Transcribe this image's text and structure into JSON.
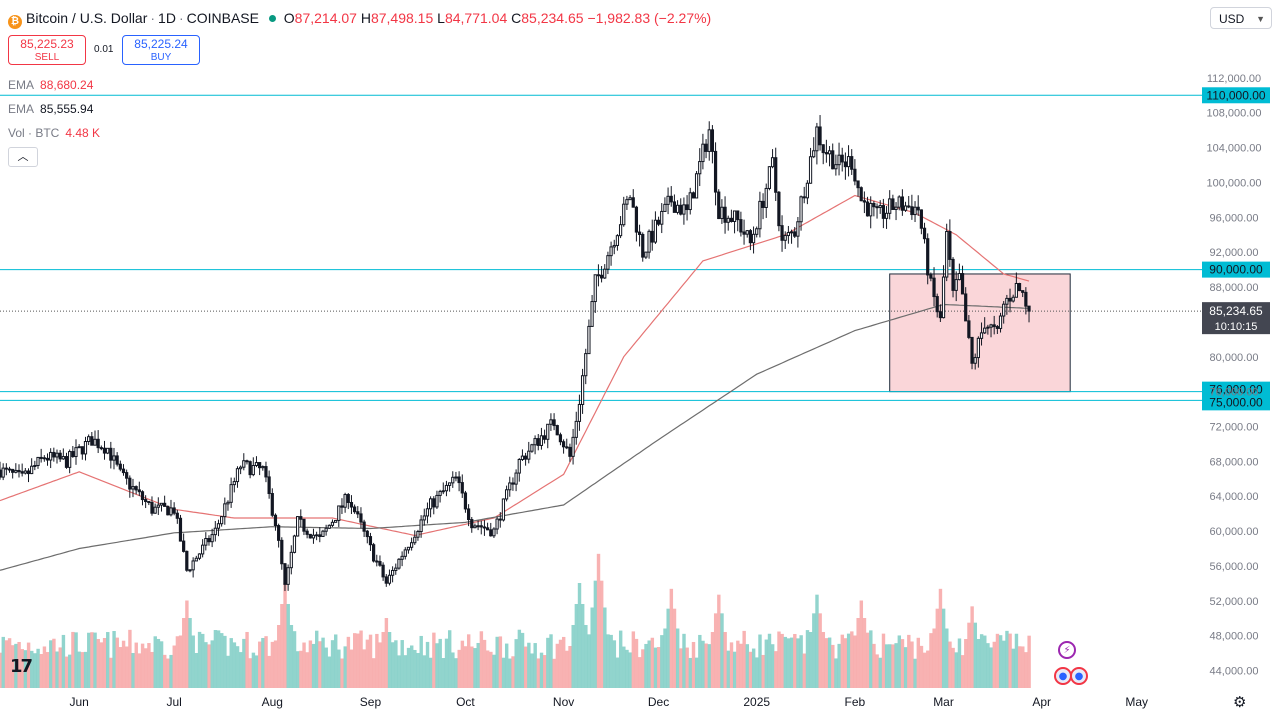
{
  "header": {
    "symbol_name": "Bitcoin / U.S. Dollar",
    "interval": "1D",
    "exchange": "COINBASE",
    "ohlc": {
      "open_label": "O",
      "open": "87,214.07",
      "high_label": "H",
      "high": "87,498.15",
      "low_label": "L",
      "low": "84,771.04",
      "close_label": "C",
      "close": "85,234.65",
      "change": "−1,982.83 (−2.27%)"
    }
  },
  "trade": {
    "sell_price": "85,225.23",
    "sell_label": "SELL",
    "spread": "0.01",
    "buy_price": "85,225.24",
    "buy_label": "BUY"
  },
  "indicators": {
    "ema1_name": "EMA",
    "ema1_value": "88,680.24",
    "ema2_name": "EMA",
    "ema2_value": "85,555.94",
    "vol_name": "Vol · BTC",
    "vol_value": "4.48 K"
  },
  "currency": {
    "selected": "USD"
  },
  "colors": {
    "up": "#089981",
    "down": "#f23645",
    "ema_fast": "#e57373",
    "ema_slow": "#6d6d6d",
    "hline": "#00bcd4",
    "box_fill": "#f8c8cc",
    "box_stroke": "#1e2a3a",
    "vol_up": "#7ecdc4",
    "vol_down": "#f7a5a5"
  },
  "chart_data": {
    "type": "candlestick",
    "y_axis_ticks": [
      "112,000.00",
      "108,000.00",
      "104,000.00",
      "100,000.00",
      "96,000.00",
      "92,000.00",
      "88,000.00",
      "84,000.00",
      "80,000.00",
      "76,000.00",
      "72,000.00",
      "68,000.00",
      "64,000.00",
      "60,000.00",
      "56,000.00",
      "52,000.00",
      "48,000.00",
      "44,000.00"
    ],
    "y_ticks_values": [
      112000,
      108000,
      104000,
      100000,
      96000,
      92000,
      88000,
      84000,
      80000,
      76000,
      72000,
      68000,
      64000,
      60000,
      56000,
      52000,
      48000,
      44000
    ],
    "ylim": [
      42000,
      116800
    ],
    "x_axis_labels": [
      {
        "label": "Jun",
        "date": "2024-06-01"
      },
      {
        "label": "Jul",
        "date": "2024-07-01"
      },
      {
        "label": "Aug",
        "date": "2024-08-01"
      },
      {
        "label": "Sep",
        "date": "2024-09-01"
      },
      {
        "label": "Oct",
        "date": "2024-10-01"
      },
      {
        "label": "Nov",
        "date": "2024-11-01"
      },
      {
        "label": "Dec",
        "date": "2024-12-01"
      },
      {
        "label": "2025",
        "date": "2025-01-01"
      },
      {
        "label": "Feb",
        "date": "2025-02-01"
      },
      {
        "label": "Mar",
        "date": "2025-03-01"
      },
      {
        "label": "Apr",
        "date": "2025-04-01"
      },
      {
        "label": "May",
        "date": "2025-05-01"
      }
    ],
    "xlim": [
      "2024-05-07",
      "2025-05-21"
    ],
    "horizontal_lines": [
      {
        "value": 110000,
        "label": "110,000.00"
      },
      {
        "value": 90000,
        "label": "90,000.00"
      },
      {
        "value": 76000,
        "label": "76,000.00"
      },
      {
        "value": 75000,
        "label": "75,000.00"
      }
    ],
    "current_price": {
      "value": 85234.65,
      "label": "85,234.65",
      "countdown": "10:10:15"
    },
    "zone_box": {
      "start": "2025-02-12",
      "end": "2025-04-10",
      "top": 89500,
      "bottom": 76000
    },
    "price_path": [
      [
        "2024-05-07",
        67000
      ],
      [
        "2024-05-14",
        66000
      ],
      [
        "2024-05-21",
        68500
      ],
      [
        "2024-05-28",
        68000
      ],
      [
        "2024-06-05",
        70500
      ],
      [
        "2024-06-10",
        69500
      ],
      [
        "2024-06-14",
        66500
      ],
      [
        "2024-06-24",
        62500
      ],
      [
        "2024-07-01",
        62500
      ],
      [
        "2024-07-05",
        55500
      ],
      [
        "2024-07-14",
        60000
      ],
      [
        "2024-07-22",
        67500
      ],
      [
        "2024-07-29",
        67000
      ],
      [
        "2024-08-02",
        61000
      ],
      [
        "2024-08-05",
        53500
      ],
      [
        "2024-08-09",
        61000
      ],
      [
        "2024-08-16",
        59000
      ],
      [
        "2024-08-25",
        64000
      ],
      [
        "2024-09-01",
        58000
      ],
      [
        "2024-09-06",
        54000
      ],
      [
        "2024-09-12",
        58000
      ],
      [
        "2024-09-20",
        63000
      ],
      [
        "2024-09-28",
        66000
      ],
      [
        "2024-10-03",
        61000
      ],
      [
        "2024-10-10",
        60000
      ],
      [
        "2024-10-18",
        68000
      ],
      [
        "2024-10-29",
        72500
      ],
      [
        "2024-11-03",
        68500
      ],
      [
        "2024-11-06",
        75000
      ],
      [
        "2024-11-11",
        88500
      ],
      [
        "2024-11-13",
        90000
      ],
      [
        "2024-11-22",
        98500
      ],
      [
        "2024-11-26",
        92000
      ],
      [
        "2024-12-05",
        98000
      ],
      [
        "2024-12-10",
        96500
      ],
      [
        "2024-12-17",
        106000
      ],
      [
        "2024-12-20",
        97000
      ],
      [
        "2024-12-26",
        95500
      ],
      [
        "2024-12-30",
        93000
      ],
      [
        "2025-01-06",
        102000
      ],
      [
        "2025-01-09",
        93000
      ],
      [
        "2025-01-13",
        94500
      ],
      [
        "2025-01-20",
        106000
      ],
      [
        "2025-01-22",
        104000
      ],
      [
        "2025-01-27",
        102000
      ],
      [
        "2025-01-31",
        102500
      ],
      [
        "2025-02-03",
        98000
      ],
      [
        "2025-02-08",
        96000
      ],
      [
        "2025-02-14",
        97500
      ],
      [
        "2025-02-21",
        97000
      ],
      [
        "2025-02-25",
        88000
      ],
      [
        "2025-02-28",
        84000
      ],
      [
        "2025-03-02",
        94000
      ],
      [
        "2025-03-04",
        87000
      ],
      [
        "2025-03-06",
        89000
      ],
      [
        "2025-03-10",
        79000
      ],
      [
        "2025-03-14",
        84000
      ],
      [
        "2025-03-18",
        82500
      ],
      [
        "2025-03-20",
        86000
      ],
      [
        "2025-03-24",
        88000
      ],
      [
        "2025-03-26",
        87200
      ],
      [
        "2025-03-28",
        85234.65
      ]
    ],
    "ema_fast": [
      [
        "2024-05-07",
        63500
      ],
      [
        "2024-06-01",
        66800
      ],
      [
        "2024-07-01",
        62500
      ],
      [
        "2024-07-20",
        61500
      ],
      [
        "2024-08-20",
        61500
      ],
      [
        "2024-09-15",
        59500
      ],
      [
        "2024-10-10",
        61500
      ],
      [
        "2024-11-01",
        66500
      ],
      [
        "2024-11-20",
        80000
      ],
      [
        "2024-12-15",
        91000
      ],
      [
        "2025-01-10",
        94000
      ],
      [
        "2025-02-01",
        98500
      ],
      [
        "2025-02-20",
        96500
      ],
      [
        "2025-03-05",
        94000
      ],
      [
        "2025-03-20",
        89500
      ],
      [
        "2025-03-28",
        88680
      ]
    ],
    "ema_slow": [
      [
        "2024-05-07",
        55500
      ],
      [
        "2024-06-01",
        58000
      ],
      [
        "2024-07-01",
        59800
      ],
      [
        "2024-08-01",
        60500
      ],
      [
        "2024-09-01",
        60300
      ],
      [
        "2024-10-01",
        61000
      ],
      [
        "2024-11-01",
        63000
      ],
      [
        "2024-12-01",
        70500
      ],
      [
        "2025-01-01",
        78000
      ],
      [
        "2025-02-01",
        83000
      ],
      [
        "2025-03-01",
        86000
      ],
      [
        "2025-03-28",
        85556
      ]
    ],
    "volume_peaks_btc": [
      [
        "2024-07-05",
        7500
      ],
      [
        "2024-08-05",
        9000
      ],
      [
        "2024-09-06",
        6000
      ],
      [
        "2024-11-06",
        9000
      ],
      [
        "2024-11-12",
        11500
      ],
      [
        "2024-12-05",
        8500
      ],
      [
        "2024-12-20",
        8000
      ],
      [
        "2025-01-20",
        8000
      ],
      [
        "2025-02-03",
        7500
      ],
      [
        "2025-02-28",
        8500
      ],
      [
        "2025-03-10",
        7000
      ]
    ]
  }
}
